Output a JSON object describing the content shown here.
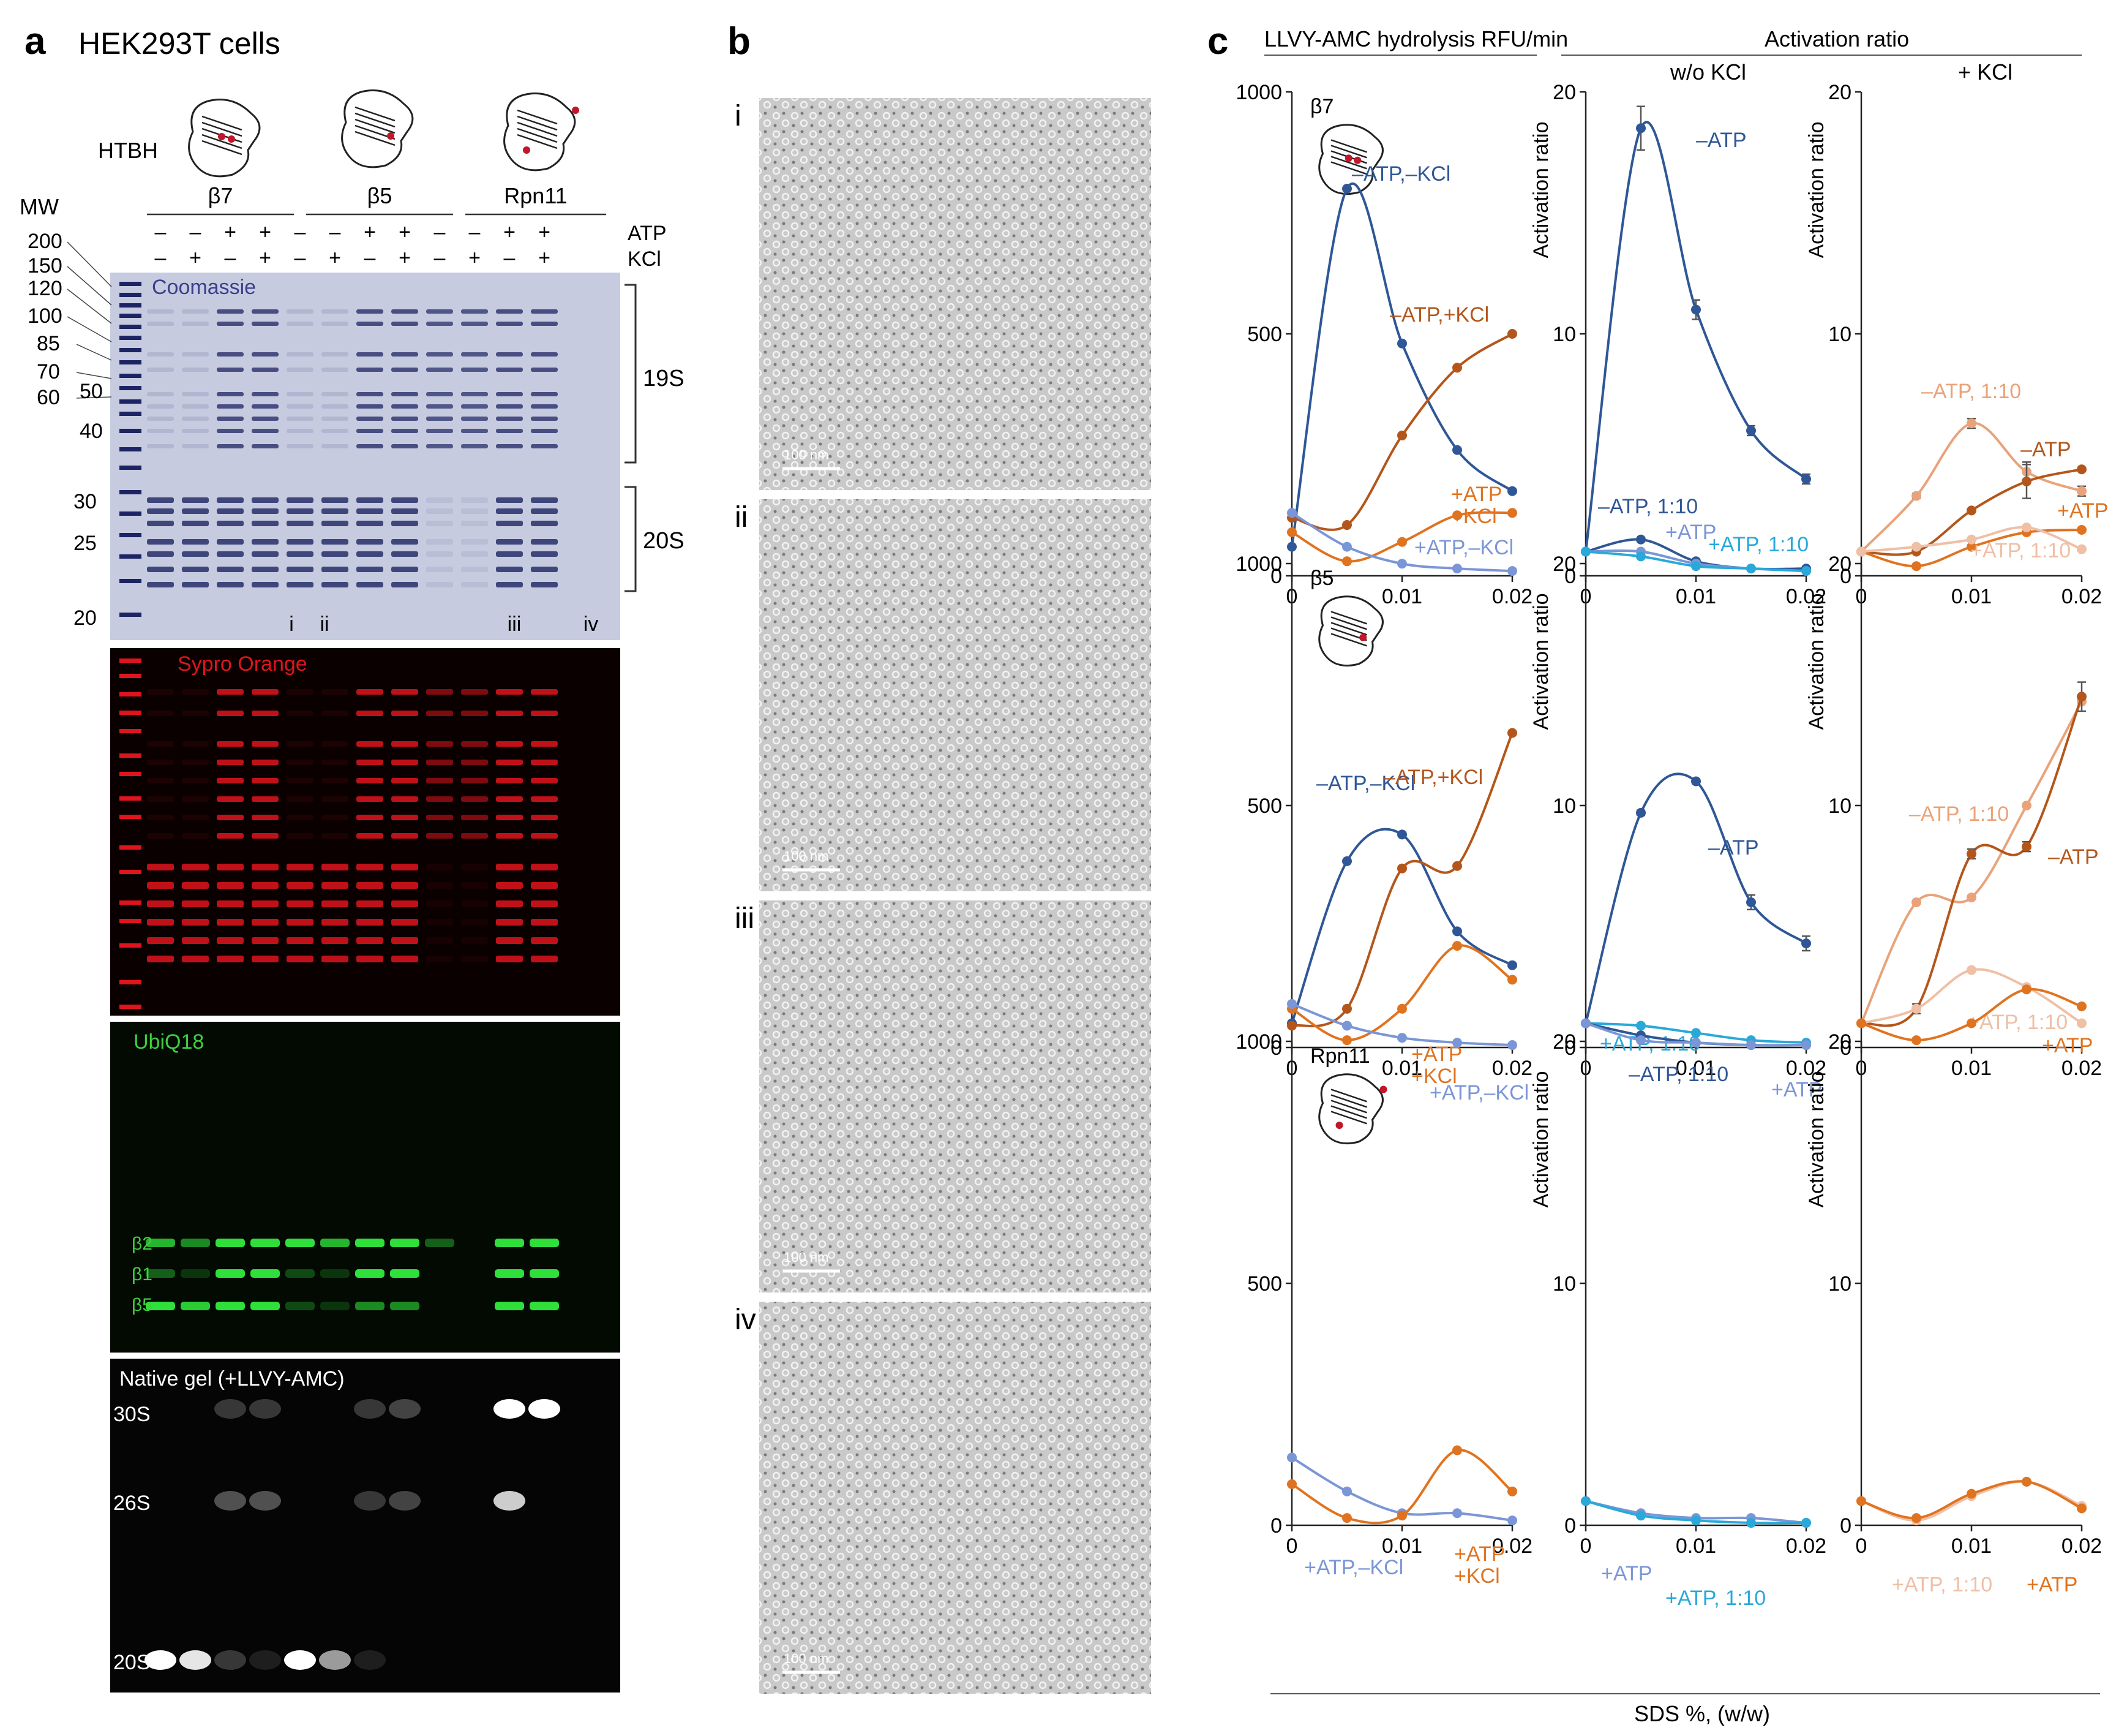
{
  "panel_a": {
    "letter": "a",
    "title": "HEK293T cells",
    "htbh": "HTBH",
    "mw_label": "MW",
    "groups": [
      "β7",
      "β5",
      "Rpn11"
    ],
    "row_labels": [
      "ATP",
      "KCl"
    ],
    "atp_signs": [
      "–",
      "–",
      "+",
      "+",
      "–",
      "–",
      "+",
      "+",
      "–",
      "–",
      "+",
      "+"
    ],
    "kcl_signs": [
      "–",
      "+",
      "–",
      "+",
      "–",
      "+",
      "–",
      "+",
      "–",
      "+",
      "–",
      "+"
    ],
    "mw_markers": [
      "200",
      "150",
      "120",
      "100",
      "85",
      "70",
      "60",
      "50",
      "40",
      "30",
      "25",
      "20"
    ],
    "lane_marks": [
      "i",
      "ii",
      "iii",
      "iv"
    ],
    "bracket_labels": [
      "19S",
      "20S"
    ],
    "gels": {
      "coomassie": "Coomassie",
      "sypro": "Sypro Orange",
      "ubiq": "UbiQ18",
      "native": "Native gel (+LLVY-AMC)"
    },
    "subunit_labels": [
      "β2",
      "β1",
      "β5"
    ],
    "native_labels": [
      "30S",
      "26S",
      "20S"
    ],
    "colors": {
      "coomassie_bg": "#c6cbe0",
      "coomassie_band": "#1d2463",
      "sypro_band": "#e0141c",
      "ubiq_band": "#2fe03a"
    }
  },
  "panel_b": {
    "letter": "b",
    "image_labels": [
      "i",
      "ii",
      "iii",
      "iv"
    ],
    "scale_bar": "100 nm"
  },
  "panel_c": {
    "letter": "c",
    "header_left": "LLVY-AMC hydrolysis RFU/min",
    "header_right": "Activation ratio",
    "subheader_mid": "w/o KCl",
    "subheader_right": "+ KCl",
    "xlabel": "SDS %, (w/w)",
    "ylabel_ratio": "Activation ratio",
    "colors": {
      "dark_blue": "#2f5797",
      "light_blue": "#7b96d6",
      "cyan": "#29a9d9",
      "dark_orange": "#b4561b",
      "orange": "#e07320",
      "light_orange": "#e9a37a",
      "pale_orange": "#efbfa6"
    }
  },
  "chart_data": [
    {
      "type": "line",
      "row": "β7",
      "panel": "LLVY-AMC hydrolysis RFU/min",
      "x": [
        0,
        0.005,
        0.01,
        0.015,
        0.02
      ],
      "xlim": [
        0,
        0.02
      ],
      "ylim": [
        0,
        1000
      ],
      "xticks": [
        "0",
        "0.01",
        "0.02"
      ],
      "yticks": [
        "0",
        "500",
        "1000"
      ],
      "series": [
        {
          "name": "–ATP,–KCl",
          "color": "#2f5797",
          "values": [
            60,
            800,
            480,
            260,
            175
          ]
        },
        {
          "name": "–ATP,+KCl",
          "color": "#b4561b",
          "values": [
            120,
            105,
            290,
            430,
            500
          ]
        },
        {
          "name": "+ATP +KCl",
          "color": "#e07320",
          "values": [
            90,
            30,
            70,
            125,
            130
          ]
        },
        {
          "name": "+ATP,–KCl",
          "color": "#7b96d6",
          "values": [
            130,
            60,
            25,
            15,
            10
          ]
        }
      ]
    },
    {
      "type": "line",
      "row": "β7",
      "panel": "Activation ratio w/o KCl",
      "x": [
        0,
        0.005,
        0.01,
        0.015,
        0.02
      ],
      "xlim": [
        0,
        0.02
      ],
      "ylim": [
        0,
        20
      ],
      "xticks": [
        "0",
        "0.01",
        "0.02"
      ],
      "yticks": [
        "0",
        "10",
        "20"
      ],
      "series": [
        {
          "name": "–ATP",
          "color": "#2f5797",
          "values": [
            1,
            18.5,
            11,
            6,
            4
          ],
          "errors": [
            0,
            0.9,
            0.4,
            0.2,
            0.2
          ]
        },
        {
          "name": "–ATP, 1:10",
          "color": "#2f5797",
          "values": [
            1,
            1.5,
            0.6,
            0.3,
            0.3
          ]
        },
        {
          "name": "+ATP",
          "color": "#7b96d6",
          "values": [
            1,
            1.0,
            0.5,
            0.3,
            0.2
          ]
        },
        {
          "name": "+ATP, 1:10",
          "color": "#29a9d9",
          "values": [
            1,
            0.8,
            0.4,
            0.3,
            0.2
          ]
        }
      ]
    },
    {
      "type": "line",
      "row": "β7",
      "panel": "Activation ratio + KCl",
      "x": [
        0,
        0.005,
        0.01,
        0.015,
        0.02
      ],
      "xlim": [
        0,
        0.02
      ],
      "ylim": [
        0,
        20
      ],
      "xticks": [
        "0",
        "0.01",
        "0.02"
      ],
      "yticks": [
        "0",
        "10",
        "20"
      ],
      "series": [
        {
          "name": "–ATP, 1:10",
          "color": "#e9a37a",
          "values": [
            1,
            3.3,
            6.3,
            4.3,
            3.5
          ],
          "errors": [
            0,
            0.1,
            0.2,
            0.4,
            0.2
          ]
        },
        {
          "name": "–ATP",
          "color": "#b4561b",
          "values": [
            1,
            1,
            2.7,
            3.9,
            4.4
          ],
          "errors": [
            0,
            0,
            0,
            0.7,
            0
          ]
        },
        {
          "name": "+ATP",
          "color": "#e07320",
          "values": [
            1,
            0.4,
            1.2,
            1.8,
            1.9
          ]
        },
        {
          "name": "+ATP, 1:10",
          "color": "#efbfa6",
          "values": [
            1,
            1.2,
            1.5,
            2.0,
            1.1
          ]
        }
      ]
    },
    {
      "type": "line",
      "row": "β5",
      "panel": "LLVY-AMC hydrolysis RFU/min",
      "x": [
        0,
        0.005,
        0.01,
        0.015,
        0.02
      ],
      "xlim": [
        0,
        0.02
      ],
      "ylim": [
        0,
        1000
      ],
      "xticks": [
        "0",
        "0.01",
        "0.02"
      ],
      "yticks": [
        "0",
        "500",
        "1000"
      ],
      "series": [
        {
          "name": "–ATP,–KCl",
          "color": "#2f5797",
          "values": [
            50,
            385,
            440,
            240,
            170
          ]
        },
        {
          "name": "–ATP,+KCl",
          "color": "#b4561b",
          "values": [
            45,
            80,
            370,
            375,
            650
          ]
        },
        {
          "name": "+ATP +KCl",
          "color": "#e07320",
          "values": [
            80,
            15,
            80,
            210,
            140
          ]
        },
        {
          "name": "+ATP,–KCl",
          "color": "#7b96d6",
          "values": [
            90,
            45,
            20,
            10,
            5
          ]
        }
      ]
    },
    {
      "type": "line",
      "row": "β5",
      "panel": "Activation ratio w/o KCl",
      "x": [
        0,
        0.005,
        0.01,
        0.015,
        0.02
      ],
      "xlim": [
        0,
        0.02
      ],
      "ylim": [
        0,
        20
      ],
      "xticks": [
        "0",
        "0.01",
        "0.02"
      ],
      "yticks": [
        "0",
        "10",
        "20"
      ],
      "series": [
        {
          "name": "–ATP",
          "color": "#2f5797",
          "values": [
            1,
            9.7,
            11,
            6,
            4.3
          ],
          "errors": [
            0,
            0.1,
            0.1,
            0.3,
            0.3
          ]
        },
        {
          "name": "+ATP, 1:10",
          "color": "#29a9d9",
          "values": [
            1,
            0.9,
            0.6,
            0.3,
            0.2
          ]
        },
        {
          "name": "–ATP, 1:10",
          "color": "#2f5797",
          "values": [
            1,
            0.5,
            0.2,
            0.1,
            0.1
          ]
        },
        {
          "name": "+ATP",
          "color": "#7b96d6",
          "values": [
            1,
            0.3,
            0.2,
            0.1,
            0.1
          ]
        }
      ]
    },
    {
      "type": "line",
      "row": "β5",
      "panel": "Activation ratio + KCl",
      "x": [
        0,
        0.005,
        0.01,
        0.015,
        0.02
      ],
      "xlim": [
        0,
        0.02
      ],
      "ylim": [
        0,
        20
      ],
      "xticks": [
        "0",
        "0.01",
        "0.02"
      ],
      "yticks": [
        "0",
        "10",
        "20"
      ],
      "series": [
        {
          "name": "–ATP, 1:10",
          "color": "#e9a37a",
          "values": [
            1,
            6,
            6.2,
            10,
            14.3
          ]
        },
        {
          "name": "–ATP",
          "color": "#b4561b",
          "values": [
            1,
            1.6,
            8,
            8.3,
            14.5
          ],
          "errors": [
            0,
            0.2,
            0.2,
            0.2,
            0.6
          ]
        },
        {
          "name": "+ATP, 1:10",
          "color": "#efbfa6",
          "values": [
            1,
            1.6,
            3.2,
            2.5,
            1
          ]
        },
        {
          "name": "+ATP",
          "color": "#e07320",
          "values": [
            1,
            0.3,
            1.0,
            2.4,
            1.7
          ]
        }
      ]
    },
    {
      "type": "line",
      "row": "Rpn11",
      "panel": "LLVY-AMC hydrolysis RFU/min",
      "x": [
        0,
        0.005,
        0.01,
        0.015,
        0.02
      ],
      "xlim": [
        0,
        0.02
      ],
      "ylim": [
        0,
        1000
      ],
      "xticks": [
        "0",
        "0.01",
        "0.02"
      ],
      "yticks": [
        "0",
        "500",
        "1000"
      ],
      "series": [
        {
          "name": "+ATP,–KCl",
          "color": "#7b96d6",
          "values": [
            140,
            70,
            25,
            25,
            10
          ]
        },
        {
          "name": "+ATP +KCl",
          "color": "#e07320",
          "values": [
            85,
            15,
            20,
            155,
            70
          ]
        }
      ]
    },
    {
      "type": "line",
      "row": "Rpn11",
      "panel": "Activation ratio w/o KCl",
      "x": [
        0,
        0.005,
        0.01,
        0.015,
        0.02
      ],
      "xlim": [
        0,
        0.02
      ],
      "ylim": [
        0,
        20
      ],
      "xticks": [
        "0",
        "0.01",
        "0.02"
      ],
      "yticks": [
        "0",
        "10",
        "20"
      ],
      "series": [
        {
          "name": "+ATP",
          "color": "#7b96d6",
          "values": [
            1,
            0.5,
            0.3,
            0.3,
            0.1
          ]
        },
        {
          "name": "+ATP, 1:10",
          "color": "#29a9d9",
          "values": [
            1,
            0.4,
            0.2,
            0.1,
            0.1
          ]
        }
      ]
    },
    {
      "type": "line",
      "row": "Rpn11",
      "panel": "Activation ratio + KCl",
      "x": [
        0,
        0.005,
        0.01,
        0.015,
        0.02
      ],
      "xlim": [
        0,
        0.02
      ],
      "ylim": [
        0,
        20
      ],
      "xticks": [
        "0",
        "0.01",
        "0.02"
      ],
      "yticks": [
        "0",
        "10",
        "20"
      ],
      "series": [
        {
          "name": "+ATP, 1:10",
          "color": "#efbfa6",
          "values": [
            1,
            0.2,
            1.2,
            1.8,
            0.8
          ]
        },
        {
          "name": "+ATP",
          "color": "#e07320",
          "values": [
            1,
            0.3,
            1.3,
            1.8,
            0.7
          ]
        }
      ]
    }
  ]
}
